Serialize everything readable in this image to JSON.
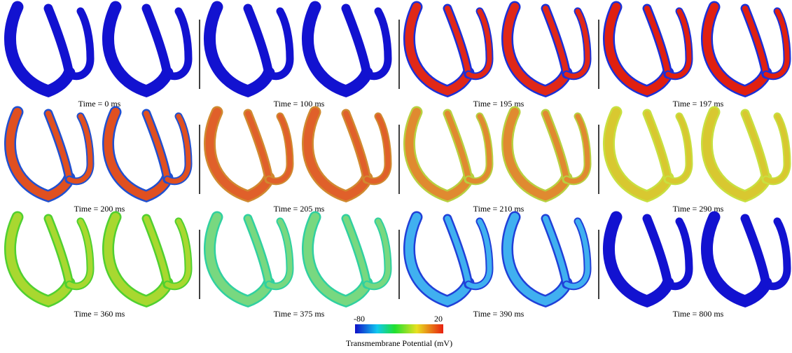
{
  "panels": [
    {
      "label": "Time = 0 ms"
    },
    {
      "label": "Time = 100 ms"
    },
    {
      "label": "Time = 195 ms"
    },
    {
      "label": "Time = 197 ms"
    },
    {
      "label": "Time = 200 ms"
    },
    {
      "label": "Time = 205 ms"
    },
    {
      "label": "Time = 210 ms"
    },
    {
      "label": "Time = 290 ms"
    },
    {
      "label": "Time = 360 ms"
    },
    {
      "label": "Time = 375 ms"
    },
    {
      "label": "Time = 390 ms"
    },
    {
      "label": "Time = 800 ms"
    }
  ],
  "colorbar": {
    "min": -80,
    "max": 20,
    "label": "Transmembrane Potential (mV)"
  }
}
